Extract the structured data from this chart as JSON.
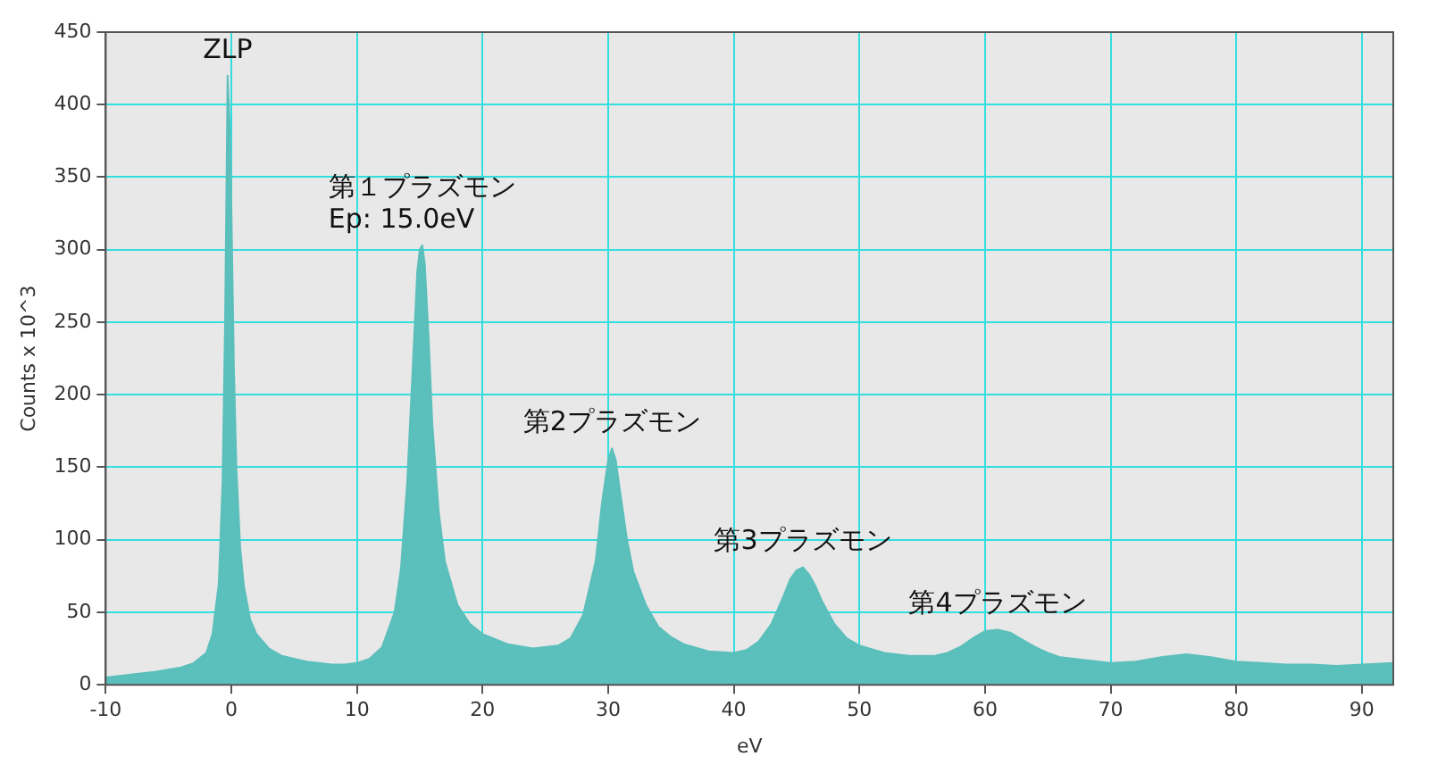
{
  "chart_data": {
    "type": "area",
    "xlabel": "eV",
    "ylabel": "Counts x 10^3",
    "x": [
      -10,
      -8,
      -6,
      -4,
      -3,
      -2,
      -1.5,
      -1,
      -0.7,
      -0.5,
      -0.3,
      -0.1,
      0,
      0.2,
      0.4,
      0.7,
      1,
      1.5,
      2,
      3,
      4,
      5,
      6,
      7,
      8,
      9,
      10,
      11,
      12,
      13,
      13.5,
      14,
      14.5,
      14.8,
      15,
      15.2,
      15.4,
      15.7,
      16,
      16.5,
      17,
      18,
      19,
      20,
      22,
      24,
      26,
      27,
      28,
      29,
      29.5,
      30,
      30.3,
      30.6,
      31,
      31.5,
      32,
      33,
      34,
      35,
      36,
      38,
      40,
      41,
      42,
      43,
      44,
      44.5,
      45,
      45.5,
      46,
      46.5,
      47,
      48,
      49,
      50,
      52,
      54,
      56,
      57,
      58,
      59,
      60,
      61,
      62,
      63,
      64,
      65,
      66,
      68,
      70,
      72,
      74,
      76,
      78,
      80,
      82,
      84,
      86,
      88,
      90,
      92.5
    ],
    "series": [
      {
        "color": "#5bbfbb",
        "values": [
          5,
          7,
          9,
          12,
          15,
          22,
          35,
          70,
          140,
          250,
          420,
          380,
          330,
          220,
          150,
          95,
          68,
          45,
          35,
          25,
          20,
          18,
          16,
          15,
          14,
          14,
          15,
          18,
          26,
          50,
          80,
          140,
          230,
          285,
          300,
          303,
          290,
          240,
          180,
          120,
          85,
          55,
          42,
          35,
          28,
          25,
          27,
          32,
          48,
          85,
          125,
          155,
          163,
          155,
          130,
          100,
          78,
          55,
          40,
          33,
          28,
          23,
          22,
          24,
          30,
          42,
          62,
          73,
          79,
          81,
          76,
          68,
          58,
          42,
          32,
          27,
          22,
          20,
          20,
          22,
          26,
          32,
          37,
          38,
          36,
          31,
          26,
          22,
          19,
          17,
          15,
          16,
          19,
          21,
          19,
          16,
          15,
          14,
          14,
          13,
          14,
          15
        ]
      }
    ],
    "xlim": [
      -10,
      92.5
    ],
    "xticks": [
      -10,
      0,
      10,
      20,
      30,
      40,
      50,
      60,
      70,
      80,
      90
    ],
    "ylim": [
      0,
      450
    ],
    "yticks": [
      0,
      50,
      100,
      150,
      200,
      250,
      300,
      350,
      400,
      450
    ],
    "grid": true,
    "legend": false,
    "annotations": [
      {
        "text": "ZLP",
        "x": -0.3,
        "y": 420
      },
      {
        "text": "第１プラズモン\nEp: 15.0eV",
        "x": 15.2,
        "y": 303
      },
      {
        "text": "第2プラズモン",
        "x": 30.3,
        "y": 163
      },
      {
        "text": "第3プラズモン",
        "x": 45.5,
        "y": 81
      },
      {
        "text": "第4プラズモン",
        "x": 61,
        "y": 38
      }
    ]
  }
}
